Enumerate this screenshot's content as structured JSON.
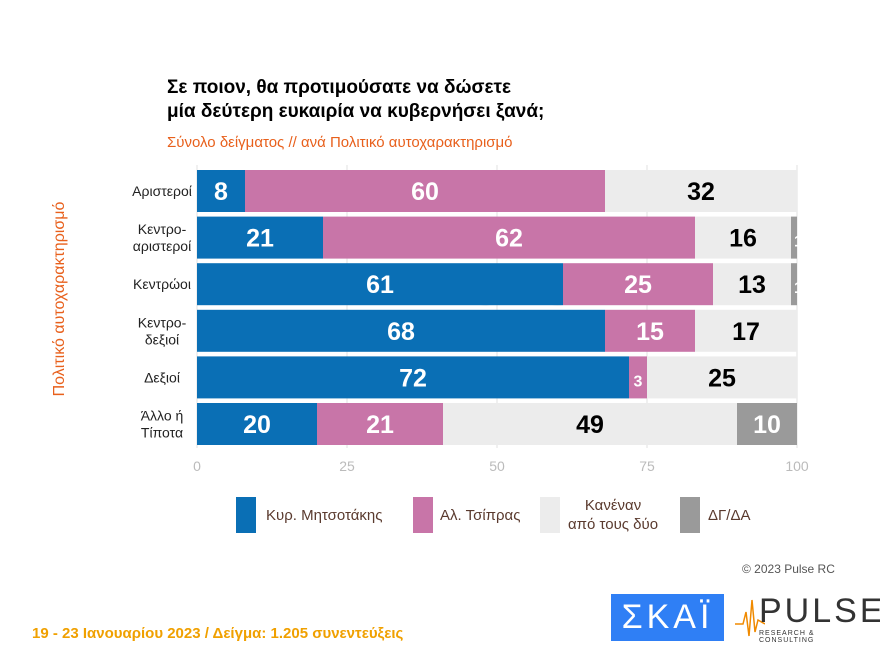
{
  "chart_data": {
    "type": "bar",
    "orientation": "horizontal-stacked",
    "title": "Σε ποιον, θα προτιμούσατε να δώσετε μία δεύτερη ευκαιρία να κυβερνήσει ξανά;",
    "title_lines": [
      "Σε ποιον, θα προτιμούσατε να δώσετε",
      "μία δεύτερη ευκαιρία να κυβερνήσει ξανά;"
    ],
    "subtitle": "Σύνολο δείγματος // ανά Πολιτικό αυτοχαρακτηρισμό",
    "ylabel": "Πολιτικό αυτοχαρακτηρισμό",
    "xlabel": "",
    "xlim": [
      0,
      100
    ],
    "xticks": [
      "0",
      "25",
      "50",
      "75",
      "100"
    ],
    "grid": true,
    "legend_position": "bottom",
    "categories": [
      [
        "Αριστεροί"
      ],
      [
        "Κεντρο-",
        "αριστεροί"
      ],
      [
        "Κεντρώοι"
      ],
      [
        "Κεντρο-",
        "δεξιοί"
      ],
      [
        "Δεξιοί"
      ],
      [
        "Άλλο ή",
        "Τίποτα"
      ]
    ],
    "series": [
      {
        "name": "Κυρ. Μητσοτάκης",
        "color": "#0a6fb5",
        "label_color": "#ffffff",
        "values": [
          8,
          21,
          61,
          68,
          72,
          20
        ]
      },
      {
        "name": "Αλ. Τσίπρας",
        "color": "#c875a8",
        "label_color": "#ffffff",
        "values": [
          60,
          62,
          25,
          15,
          3,
          21
        ]
      },
      {
        "name": "Κανέναν από τους δύο",
        "name_lines": [
          "Κανέναν",
          "από τους δύο"
        ],
        "color": "#ececec",
        "label_color": "#000000",
        "values": [
          32,
          16,
          13,
          17,
          25,
          49
        ]
      },
      {
        "name": "ΔΓ/ΔΑ",
        "color": "#9a9a9a",
        "label_color": "#ffffff",
        "values": [
          0,
          1,
          1,
          0,
          0,
          10
        ]
      }
    ]
  },
  "copyright": "© 2023 Pulse RC",
  "footer": "19 - 23  Ιανουαρίου  2023  /  Δείγμα:  1.205 συνεντεύξεις",
  "logos": {
    "skai": "ΣΚΑΪ",
    "pulse": "PULSE",
    "pulse_sub": "RESEARCH & CONSULTING"
  }
}
